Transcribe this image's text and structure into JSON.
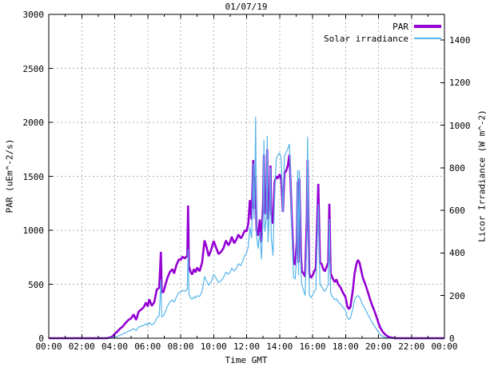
{
  "colors": {
    "par": "#9400d3",
    "irradiance": "#56b4e9",
    "grid": "#b0b0b0",
    "frame": "#000000",
    "background": "#ffffff"
  },
  "chart_data": {
    "type": "line",
    "title": "01/07/19",
    "xlabel": "Time GMT",
    "ylabel": "PAR (uEm^-2/s)",
    "y2label": "Licor Irradiance (W m^-2)",
    "grid": true,
    "legend_position": "top-right",
    "xlim_hours": [
      0,
      24
    ],
    "ylim": [
      0,
      3000
    ],
    "y2lim": [
      0,
      1520
    ],
    "x_ticks_hours": [
      0,
      2,
      4,
      6,
      8,
      10,
      12,
      14,
      16,
      18,
      20,
      22,
      24
    ],
    "x_tick_labels": [
      "00:00",
      "02:00",
      "04:00",
      "06:00",
      "08:00",
      "10:00",
      "12:00",
      "14:00",
      "16:00",
      "18:00",
      "20:00",
      "22:00",
      "00:00"
    ],
    "x_minor_ticks_hours": [
      1,
      3,
      5,
      7,
      9,
      11,
      13,
      15,
      17,
      19,
      21,
      23
    ],
    "y_ticks": [
      0,
      500,
      1000,
      1500,
      2000,
      2500,
      3000
    ],
    "y2_ticks": [
      0,
      200,
      400,
      600,
      800,
      1000,
      1200,
      1400
    ],
    "series": [
      {
        "name": "PAR",
        "axis": "y1",
        "color": "#9400d3",
        "line_width": 2.6,
        "legend_sample_height": 4
      },
      {
        "name": "Solar irradiance",
        "axis": "y2",
        "color": "#56b4e9",
        "line_width": 1.2,
        "legend_sample_height": 2
      }
    ],
    "points_t_par_irr": [
      [
        0,
        0,
        0
      ],
      [
        1,
        0,
        0
      ],
      [
        2,
        0,
        0
      ],
      [
        3,
        0,
        0
      ],
      [
        3.5,
        0,
        0
      ],
      [
        3.7,
        5,
        1
      ],
      [
        3.85,
        15,
        2
      ],
      [
        4,
        40,
        5
      ],
      [
        4.15,
        60,
        8
      ],
      [
        4.3,
        85,
        14
      ],
      [
        4.5,
        110,
        20
      ],
      [
        4.65,
        140,
        26
      ],
      [
        4.8,
        165,
        32
      ],
      [
        5,
        185,
        38
      ],
      [
        5.15,
        220,
        45
      ],
      [
        5.3,
        170,
        36
      ],
      [
        5.45,
        245,
        52
      ],
      [
        5.6,
        265,
        56
      ],
      [
        5.75,
        285,
        60
      ],
      [
        5.9,
        330,
        68
      ],
      [
        6,
        295,
        60
      ],
      [
        6.1,
        360,
        74
      ],
      [
        6.25,
        300,
        62
      ],
      [
        6.4,
        335,
        70
      ],
      [
        6.55,
        450,
        95
      ],
      [
        6.7,
        470,
        105
      ],
      [
        6.8,
        800,
        275
      ],
      [
        6.85,
        430,
        100
      ],
      [
        6.95,
        425,
        105
      ],
      [
        7.05,
        480,
        120
      ],
      [
        7.2,
        560,
        150
      ],
      [
        7.35,
        615,
        170
      ],
      [
        7.5,
        640,
        180
      ],
      [
        7.6,
        600,
        168
      ],
      [
        7.75,
        680,
        195
      ],
      [
        7.9,
        730,
        215
      ],
      [
        8,
        725,
        215
      ],
      [
        8.1,
        755,
        225
      ],
      [
        8.25,
        740,
        220
      ],
      [
        8.4,
        765,
        230
      ],
      [
        8.45,
        1230,
        420
      ],
      [
        8.5,
        670,
        205
      ],
      [
        8.6,
        615,
        190
      ],
      [
        8.7,
        590,
        182
      ],
      [
        8.8,
        640,
        195
      ],
      [
        8.9,
        610,
        188
      ],
      [
        9,
        655,
        200
      ],
      [
        9.15,
        620,
        195
      ],
      [
        9.3,
        700,
        220
      ],
      [
        9.45,
        905,
        290
      ],
      [
        9.55,
        855,
        272
      ],
      [
        9.7,
        760,
        248
      ],
      [
        9.85,
        820,
        265
      ],
      [
        10,
        900,
        300
      ],
      [
        10.15,
        840,
        282
      ],
      [
        10.3,
        780,
        262
      ],
      [
        10.45,
        800,
        270
      ],
      [
        10.6,
        835,
        285
      ],
      [
        10.75,
        905,
        310
      ],
      [
        10.9,
        860,
        300
      ],
      [
        11,
        890,
        310
      ],
      [
        11.1,
        940,
        330
      ],
      [
        11.25,
        880,
        315
      ],
      [
        11.4,
        920,
        330
      ],
      [
        11.5,
        960,
        350
      ],
      [
        11.65,
        925,
        340
      ],
      [
        11.75,
        950,
        360
      ],
      [
        11.9,
        1000,
        390
      ],
      [
        12,
        990,
        400
      ],
      [
        12.1,
        1060,
        430
      ],
      [
        12.2,
        1280,
        520
      ],
      [
        12.3,
        1100,
        470
      ],
      [
        12.4,
        1650,
        820
      ],
      [
        12.45,
        1200,
        560
      ],
      [
        12.5,
        1340,
        700
      ],
      [
        12.55,
        1500,
        1040
      ],
      [
        12.6,
        1000,
        480
      ],
      [
        12.7,
        950,
        420
      ],
      [
        12.8,
        1100,
        500
      ],
      [
        12.9,
        890,
        370
      ],
      [
        13,
        1250,
        580
      ],
      [
        13.05,
        1700,
        930
      ],
      [
        13.1,
        1150,
        500
      ],
      [
        13.2,
        1200,
        560
      ],
      [
        13.25,
        1750,
        950
      ],
      [
        13.3,
        1100,
        450
      ],
      [
        13.4,
        1300,
        620
      ],
      [
        13.45,
        1600,
        800
      ],
      [
        13.5,
        1150,
        470
      ],
      [
        13.6,
        1060,
        387
      ],
      [
        13.7,
        1450,
        680
      ],
      [
        13.8,
        1500,
        840
      ],
      [
        13.9,
        1480,
        860
      ],
      [
        14,
        1520,
        870
      ],
      [
        14.1,
        1480,
        845
      ],
      [
        14.2,
        1170,
        590
      ],
      [
        14.3,
        1530,
        855
      ],
      [
        14.4,
        1550,
        872
      ],
      [
        14.5,
        1600,
        890
      ],
      [
        14.6,
        1700,
        912
      ],
      [
        14.65,
        1500,
        780
      ],
      [
        14.75,
        1100,
        500
      ],
      [
        14.85,
        700,
        285
      ],
      [
        14.95,
        680,
        278
      ],
      [
        15.05,
        900,
        400
      ],
      [
        15.1,
        1450,
        788
      ],
      [
        15.15,
        700,
        295
      ],
      [
        15.2,
        1480,
        790
      ],
      [
        15.3,
        750,
        300
      ],
      [
        15.35,
        620,
        250
      ],
      [
        15.45,
        600,
        225
      ],
      [
        15.55,
        570,
        200
      ],
      [
        15.65,
        1100,
        480
      ],
      [
        15.7,
        1650,
        945
      ],
      [
        15.8,
        600,
        205
      ],
      [
        15.9,
        560,
        190
      ],
      [
        16,
        580,
        200
      ],
      [
        16.1,
        620,
        220
      ],
      [
        16.2,
        650,
        230
      ],
      [
        16.35,
        1430,
        630
      ],
      [
        16.45,
        700,
        250
      ],
      [
        16.55,
        690,
        245
      ],
      [
        16.65,
        640,
        228
      ],
      [
        16.75,
        620,
        220
      ],
      [
        16.85,
        660,
        235
      ],
      [
        16.95,
        700,
        250
      ],
      [
        17.02,
        1245,
        560
      ],
      [
        17.1,
        600,
        210
      ],
      [
        17.2,
        560,
        195
      ],
      [
        17.35,
        520,
        180
      ],
      [
        17.45,
        545,
        185
      ],
      [
        17.55,
        500,
        170
      ],
      [
        17.7,
        470,
        160
      ],
      [
        17.85,
        420,
        145
      ],
      [
        18,
        380,
        130
      ],
      [
        18.1,
        300,
        100
      ],
      [
        18.2,
        270,
        88
      ],
      [
        18.3,
        290,
        95
      ],
      [
        18.45,
        450,
        140
      ],
      [
        18.55,
        600,
        180
      ],
      [
        18.65,
        680,
        195
      ],
      [
        18.75,
        725,
        200
      ],
      [
        18.85,
        700,
        192
      ],
      [
        18.95,
        630,
        175
      ],
      [
        19.05,
        560,
        155
      ],
      [
        19.2,
        500,
        135
      ],
      [
        19.35,
        430,
        112
      ],
      [
        19.5,
        355,
        90
      ],
      [
        19.6,
        310,
        75
      ],
      [
        19.75,
        255,
        58
      ],
      [
        19.9,
        190,
        40
      ],
      [
        20,
        140,
        28
      ],
      [
        20.1,
        100,
        18
      ],
      [
        20.25,
        60,
        9
      ],
      [
        20.4,
        35,
        4
      ],
      [
        20.55,
        18,
        1
      ],
      [
        20.7,
        8,
        0
      ],
      [
        21,
        0,
        0
      ],
      [
        22,
        0,
        0
      ],
      [
        23,
        0,
        0
      ],
      [
        24,
        0,
        0
      ]
    ]
  }
}
